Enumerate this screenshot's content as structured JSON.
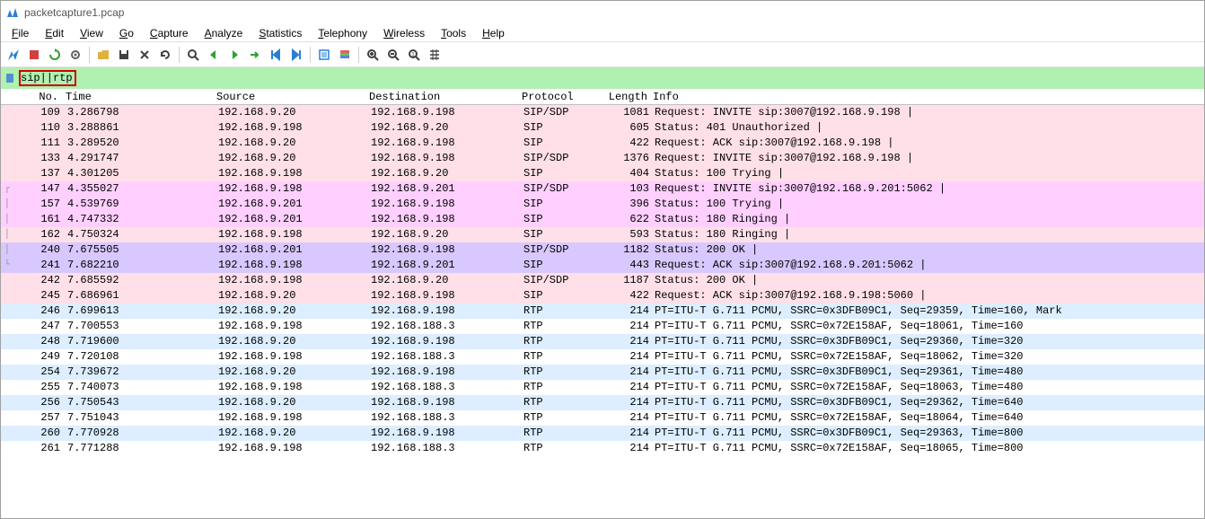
{
  "window": {
    "title": "packetcapture1.pcap"
  },
  "menu": [
    "File",
    "Edit",
    "View",
    "Go",
    "Capture",
    "Analyze",
    "Statistics",
    "Telephony",
    "Wireless",
    "Tools",
    "Help"
  ],
  "menu_accel": [
    "F",
    "E",
    "V",
    "G",
    "C",
    "A",
    "S",
    "T",
    "W",
    "T",
    "H"
  ],
  "filter": {
    "text": "sip||rtp"
  },
  "columns": [
    "No.",
    "Time",
    "Source",
    "Destination",
    "Protocol",
    "Length",
    "Info"
  ],
  "row_colors": {
    "sip_pink": "#ffe0e8",
    "sip_magenta": "#ffd0ff",
    "sip_violet": "#d8c8ff",
    "rtp_blue": "#dceeff",
    "rtp_white": "#ffffff"
  },
  "packets": [
    {
      "no": 109,
      "time": "3.286798",
      "src": "192.168.9.20",
      "dst": "192.168.9.198",
      "proto": "SIP/SDP",
      "len": 1081,
      "info": "Request: INVITE sip:3007@192.168.9.198 |",
      "color": "sip_pink",
      "tree": ""
    },
    {
      "no": 110,
      "time": "3.288861",
      "src": "192.168.9.198",
      "dst": "192.168.9.20",
      "proto": "SIP",
      "len": 605,
      "info": "Status: 401 Unauthorized |",
      "color": "sip_pink",
      "tree": ""
    },
    {
      "no": 111,
      "time": "3.289520",
      "src": "192.168.9.20",
      "dst": "192.168.9.198",
      "proto": "SIP",
      "len": 422,
      "info": "Request: ACK sip:3007@192.168.9.198 |",
      "color": "sip_pink",
      "tree": ""
    },
    {
      "no": 133,
      "time": "4.291747",
      "src": "192.168.9.20",
      "dst": "192.168.9.198",
      "proto": "SIP/SDP",
      "len": 1376,
      "info": "Request: INVITE sip:3007@192.168.9.198 |",
      "color": "sip_pink",
      "tree": ""
    },
    {
      "no": 137,
      "time": "4.301205",
      "src": "192.168.9.198",
      "dst": "192.168.9.20",
      "proto": "SIP",
      "len": 404,
      "info": "Status: 100 Trying |",
      "color": "sip_pink",
      "tree": ""
    },
    {
      "no": 147,
      "time": "4.355027",
      "src": "192.168.9.198",
      "dst": "192.168.9.201",
      "proto": "SIP/SDP",
      "len": 103,
      "info": "Request: INVITE sip:3007@192.168.9.201:5062 |",
      "color": "sip_magenta",
      "tree": "┌"
    },
    {
      "no": 157,
      "time": "4.539769",
      "src": "192.168.9.201",
      "dst": "192.168.9.198",
      "proto": "SIP",
      "len": 396,
      "info": "Status: 100 Trying |",
      "color": "sip_magenta",
      "tree": "│"
    },
    {
      "no": 161,
      "time": "4.747332",
      "src": "192.168.9.201",
      "dst": "192.168.9.198",
      "proto": "SIP",
      "len": 622,
      "info": "Status: 180 Ringing |",
      "color": "sip_magenta",
      "tree": "│"
    },
    {
      "no": 162,
      "time": "4.750324",
      "src": "192.168.9.198",
      "dst": "192.168.9.20",
      "proto": "SIP",
      "len": 593,
      "info": "Status: 180 Ringing |",
      "color": "sip_pink",
      "tree": "│"
    },
    {
      "no": 240,
      "time": "7.675505",
      "src": "192.168.9.201",
      "dst": "192.168.9.198",
      "proto": "SIP/SDP",
      "len": 1182,
      "info": "Status: 200 OK |",
      "color": "sip_violet",
      "tree": "│"
    },
    {
      "no": 241,
      "time": "7.682210",
      "src": "192.168.9.198",
      "dst": "192.168.9.201",
      "proto": "SIP",
      "len": 443,
      "info": "Request: ACK sip:3007@192.168.9.201:5062 |",
      "color": "sip_violet",
      "tree": "└"
    },
    {
      "no": 242,
      "time": "7.685592",
      "src": "192.168.9.198",
      "dst": "192.168.9.20",
      "proto": "SIP/SDP",
      "len": 1187,
      "info": "Status: 200 OK |",
      "color": "sip_pink",
      "tree": ""
    },
    {
      "no": 245,
      "time": "7.686961",
      "src": "192.168.9.20",
      "dst": "192.168.9.198",
      "proto": "SIP",
      "len": 422,
      "info": "Request: ACK sip:3007@192.168.9.198:5060 |",
      "color": "sip_pink",
      "tree": ""
    },
    {
      "no": 246,
      "time": "7.699613",
      "src": "192.168.9.20",
      "dst": "192.168.9.198",
      "proto": "RTP",
      "len": 214,
      "info": "PT=ITU-T G.711 PCMU, SSRC=0x3DFB09C1, Seq=29359, Time=160, Mark",
      "color": "rtp_blue",
      "tree": ""
    },
    {
      "no": 247,
      "time": "7.700553",
      "src": "192.168.9.198",
      "dst": "192.168.188.3",
      "proto": "RTP",
      "len": 214,
      "info": "PT=ITU-T G.711 PCMU, SSRC=0x72E158AF, Seq=18061, Time=160",
      "color": "rtp_white",
      "tree": ""
    },
    {
      "no": 248,
      "time": "7.719600",
      "src": "192.168.9.20",
      "dst": "192.168.9.198",
      "proto": "RTP",
      "len": 214,
      "info": "PT=ITU-T G.711 PCMU, SSRC=0x3DFB09C1, Seq=29360, Time=320",
      "color": "rtp_blue",
      "tree": ""
    },
    {
      "no": 249,
      "time": "7.720108",
      "src": "192.168.9.198",
      "dst": "192.168.188.3",
      "proto": "RTP",
      "len": 214,
      "info": "PT=ITU-T G.711 PCMU, SSRC=0x72E158AF, Seq=18062, Time=320",
      "color": "rtp_white",
      "tree": ""
    },
    {
      "no": 254,
      "time": "7.739672",
      "src": "192.168.9.20",
      "dst": "192.168.9.198",
      "proto": "RTP",
      "len": 214,
      "info": "PT=ITU-T G.711 PCMU, SSRC=0x3DFB09C1, Seq=29361, Time=480",
      "color": "rtp_blue",
      "tree": ""
    },
    {
      "no": 255,
      "time": "7.740073",
      "src": "192.168.9.198",
      "dst": "192.168.188.3",
      "proto": "RTP",
      "len": 214,
      "info": "PT=ITU-T G.711 PCMU, SSRC=0x72E158AF, Seq=18063, Time=480",
      "color": "rtp_white",
      "tree": ""
    },
    {
      "no": 256,
      "time": "7.750543",
      "src": "192.168.9.20",
      "dst": "192.168.9.198",
      "proto": "RTP",
      "len": 214,
      "info": "PT=ITU-T G.711 PCMU, SSRC=0x3DFB09C1, Seq=29362, Time=640",
      "color": "rtp_blue",
      "tree": ""
    },
    {
      "no": 257,
      "time": "7.751043",
      "src": "192.168.9.198",
      "dst": "192.168.188.3",
      "proto": "RTP",
      "len": 214,
      "info": "PT=ITU-T G.711 PCMU, SSRC=0x72E158AF, Seq=18064, Time=640",
      "color": "rtp_white",
      "tree": ""
    },
    {
      "no": 260,
      "time": "7.770928",
      "src": "192.168.9.20",
      "dst": "192.168.9.198",
      "proto": "RTP",
      "len": 214,
      "info": "PT=ITU-T G.711 PCMU, SSRC=0x3DFB09C1, Seq=29363, Time=800",
      "color": "rtp_blue",
      "tree": ""
    },
    {
      "no": 261,
      "time": "7.771288",
      "src": "192.168.9.198",
      "dst": "192.168.188.3",
      "proto": "RTP",
      "len": 214,
      "info": "PT=ITU-T G.711 PCMU, SSRC=0x72E158AF, Seq=18065, Time=800",
      "color": "rtp_white",
      "tree": ""
    }
  ],
  "toolbar_icons": [
    {
      "name": "start-capture-icon",
      "svg": "fin",
      "color": "#2a7fd4"
    },
    {
      "name": "stop-capture-icon",
      "svg": "square",
      "color": "#d04040"
    },
    {
      "name": "restart-capture-icon",
      "svg": "refresh",
      "color": "#30a030"
    },
    {
      "name": "options-icon",
      "svg": "gear",
      "color": "#606060"
    },
    {
      "name": "sep"
    },
    {
      "name": "open-icon",
      "svg": "folder",
      "color": "#e0b040"
    },
    {
      "name": "save-icon",
      "svg": "save",
      "color": "#404040"
    },
    {
      "name": "close-icon",
      "svg": "x",
      "color": "#404040"
    },
    {
      "name": "reload-icon",
      "svg": "reload",
      "color": "#404040"
    },
    {
      "name": "sep"
    },
    {
      "name": "find-icon",
      "svg": "search",
      "color": "#404040"
    },
    {
      "name": "prev-icon",
      "svg": "left",
      "color": "#30a030"
    },
    {
      "name": "next-icon",
      "svg": "right",
      "color": "#30a030"
    },
    {
      "name": "goto-icon",
      "svg": "goto",
      "color": "#30a030"
    },
    {
      "name": "first-icon",
      "svg": "first",
      "color": "#2a7fd4"
    },
    {
      "name": "last-icon",
      "svg": "last",
      "color": "#2a7fd4"
    },
    {
      "name": "sep"
    },
    {
      "name": "autoscroll-icon",
      "svg": "autoscroll",
      "color": "#2a7fd4"
    },
    {
      "name": "colorize-icon",
      "svg": "colorize",
      "color": "#d08030"
    },
    {
      "name": "sep"
    },
    {
      "name": "zoomin-icon",
      "svg": "zoomin",
      "color": "#404040"
    },
    {
      "name": "zoomout-icon",
      "svg": "zoomout",
      "color": "#404040"
    },
    {
      "name": "zoomreset-icon",
      "svg": "zoomreset",
      "color": "#404040"
    },
    {
      "name": "resize-cols-icon",
      "svg": "resize",
      "color": "#404040"
    }
  ]
}
